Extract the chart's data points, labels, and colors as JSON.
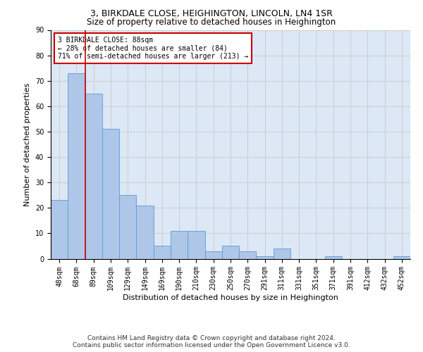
{
  "title1": "3, BIRKDALE CLOSE, HEIGHINGTON, LINCOLN, LN4 1SR",
  "title2": "Size of property relative to detached houses in Heighington",
  "xlabel": "Distribution of detached houses by size in Heighington",
  "ylabel": "Number of detached properties",
  "categories": [
    "48sqm",
    "68sqm",
    "89sqm",
    "109sqm",
    "129sqm",
    "149sqm",
    "169sqm",
    "190sqm",
    "210sqm",
    "230sqm",
    "250sqm",
    "270sqm",
    "291sqm",
    "311sqm",
    "331sqm",
    "351sqm",
    "371sqm",
    "391sqm",
    "412sqm",
    "432sqm",
    "452sqm"
  ],
  "values": [
    23,
    73,
    65,
    51,
    25,
    21,
    5,
    11,
    11,
    3,
    5,
    3,
    1,
    4,
    0,
    0,
    1,
    0,
    0,
    0,
    1
  ],
  "bar_color": "#aec6e8",
  "bar_edge_color": "#5b9bd5",
  "vline_x": 1.5,
  "annotation_text": "3 BIRKDALE CLOSE: 88sqm\n← 28% of detached houses are smaller (84)\n71% of semi-detached houses are larger (213) →",
  "annotation_box_color": "#ffffff",
  "annotation_box_edge_color": "#cc0000",
  "vline_color": "#cc0000",
  "ylim": [
    0,
    90
  ],
  "yticks": [
    0,
    10,
    20,
    30,
    40,
    50,
    60,
    70,
    80,
    90
  ],
  "grid_color": "#cccccc",
  "background_color": "#dce8f5",
  "footer1": "Contains HM Land Registry data © Crown copyright and database right 2024.",
  "footer2": "Contains public sector information licensed under the Open Government Licence v3.0.",
  "title1_fontsize": 9,
  "title2_fontsize": 8.5,
  "tick_fontsize": 7,
  "label_fontsize": 8,
  "annotation_fontsize": 7,
  "footer_fontsize": 6.5
}
